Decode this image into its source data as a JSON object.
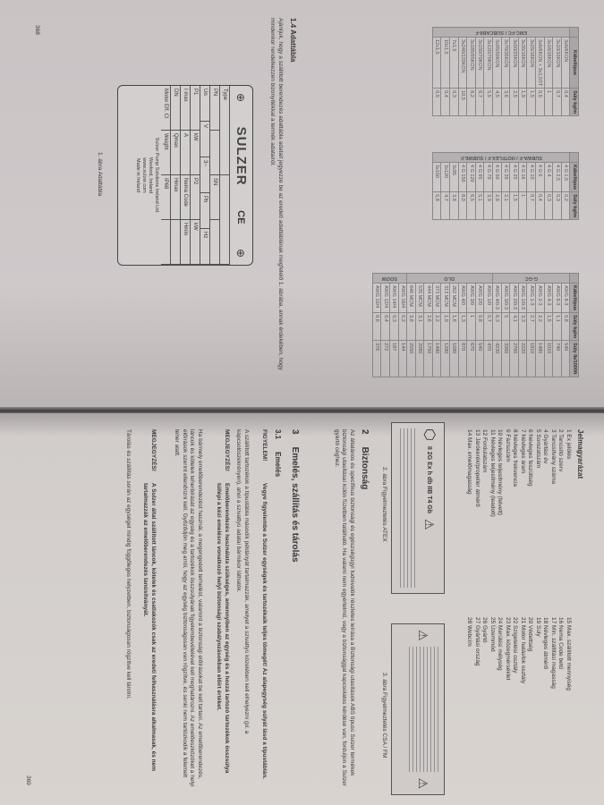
{
  "left_page": {
    "page_number": "368",
    "tables": [
      {
        "header": [
          "Kábeltípus",
          "Súly kg/m"
        ],
        "groups": [
          {
            "label": "EMC-FC / SUBCAB8-F",
            "rows": [
              [
                "3x6/6KON",
                "0,4"
              ],
              [
                "3x10/10KON",
                "0,7"
              ],
              [
                "3x16/16KON",
                "1"
              ],
              [
                "3x6/6KON + 3x1,5ST",
                "0,5"
              ],
              [
                "3x25/16KON",
                "1,5"
              ],
              [
                "3x35/16KON",
                "1,9"
              ],
              [
                "3x50/25KON",
                "2,5"
              ],
              [
                "3x70/35KON",
                "3,6"
              ],
              [
                "3x95/50KON",
                "4,5"
              ],
              [
                "3x120/70KON",
                "5,5"
              ],
              [
                "3x150/70KON",
                "6,7"
              ],
              [
                "3x185/95KON",
                "8,2"
              ],
              [
                "3x240/120KON",
                "10,5"
              ],
              [
                "7x1,5",
                "0,3"
              ],
              [
                "10x1,5",
                "0,4"
              ],
              [
                "12x1,5",
                "0,5"
              ]
            ]
          }
        ]
      },
      {
        "header": [
          "Kábeltípus",
          "Súly kg/m"
        ],
        "groups": [
          {
            "label": "SUBWA-F / HOTFLEX-F / SUBWE-F",
            "rows": [
              [
                "4 G 1,5",
                "0,2"
              ],
              [
                "4 G 2,5",
                "0,3"
              ],
              [
                "4 G 4",
                "0,3"
              ],
              [
                "4 G 6",
                "0,4"
              ],
              [
                "4 G 10",
                "0,7"
              ],
              [
                "4 G 16",
                "1"
              ],
              [
                "4 G 25",
                "1,5"
              ],
              [
                "4 G 35",
                "2,1"
              ],
              [
                "4 G 50",
                "2,8"
              ],
              [
                "4 G 70",
                "3,9"
              ],
              [
                "4 G 95",
                "5,1"
              ],
              [
                "4 G 120",
                "6,5"
              ],
              [
                "4 G 150",
                "8,0"
              ],
              [
                "3x95",
                "3,8"
              ],
              [
                "3x120",
                "4,7"
              ],
              [
                "3x150",
                "5,8"
              ]
            ]
          }
        ]
      },
      {
        "header": [
          "Kábeltípus",
          "Súly kg/m",
          "Súly lb/1000ft"
        ],
        "groups": [
          {
            "label": "G-GC",
            "rows": [
              [
                "AWG 8-3",
                "0,8",
                "540"
              ],
              [
                "AWG 6-3",
                "1,1",
                "740"
              ],
              [
                "AWG 4-3",
                "1,5",
                "1010"
              ],
              [
                "AWG 2-3",
                "2,2",
                "1480"
              ],
              [
                "AWG 1-3",
                "2,7",
                "1810"
              ],
              [
                "AWG 1/0-3",
                "3,3",
                "2220"
              ],
              [
                "AWG 2/0-3",
                "4,1",
                "2760"
              ],
              [
                "AWG 3/0-3",
                "5",
                "3360"
              ],
              [
                "AWG 4/0-3",
                "6,3",
                "4230"
              ]
            ]
          },
          {
            "label": "DLO",
            "rows": [
              [
                "AWG 1/0",
                "0,7",
                "470"
              ],
              [
                "AWG 2/0",
                "0,8",
                "540"
              ],
              [
                "AWG 3/0",
                "1",
                "670"
              ],
              [
                "AWG 4/0",
                "1,3",
                "870"
              ],
              [
                "262 MCM",
                "1,6",
                "1080"
              ],
              [
                "313 MCM",
                "1,9",
                "1280"
              ],
              [
                "373 MCM",
                "2,2",
                "1480"
              ],
              [
                "444 MCM",
                "2,6",
                "1750"
              ],
              [
                "535 MCM",
                "3,1",
                "2080"
              ],
              [
                "646 MCM",
                "3,8",
                "2550"
              ]
            ]
          },
          {
            "label": "SOOW",
            "rows": [
              [
                "AWG 16/4",
                "0,2",
                "144"
              ],
              [
                "AWG 14/4",
                "0,3",
                "187"
              ],
              [
                "AWG 12/4",
                "0,4",
                "272"
              ],
              [
                "AWG 10/4",
                "0,6",
                "376"
              ]
            ]
          }
        ]
      }
    ],
    "section_title": "1.4   Adattábla",
    "section_text": "Ajánljuk, hogy a szállított berendezés adattábla adatait jegyezze be az eredeti adattáblának megfelelő 1. ábrába, annak érdekében, hogy mindenkor rendelkezzen bizonyítékkal a termék adatairól.",
    "nameplate": {
      "brand": "SULZER",
      "ce": "CE",
      "fields": [
        [
          "Type",
          ""
        ],
        [
          "PN",
          "",
          "SN",
          ""
        ],
        [
          "Un",
          "V",
          "3~",
          "Ph",
          "Hz"
        ],
        [
          "P1",
          "kW",
          "P2",
          "kW"
        ],
        [
          "I max",
          "A",
          "Nema Code",
          "Hmin"
        ],
        [
          "DN",
          "Qmax",
          "Hmax",
          ""
        ],
        [
          "Motor Eff. Cl",
          "Weight",
          "IP68",
          ""
        ]
      ],
      "company": "Sulzer Pump Solutions Ireland Ltd.",
      "city": "Wexford, Ireland",
      "web": "www.sulzer.com",
      "made_in": "Made in Ireland"
    },
    "figure_caption": "1. ábra  Adattábla"
  },
  "right_page": {
    "page_number": "369",
    "legend_title": "Jelmagyarázat",
    "legend_items": [
      "1  Ex jelölés",
      "2  Tanúsító szerv",
      "3  Tanúsítvány száma",
      "4  Gyártási év",
      "5  Sorozatszám",
      "6  Névleges feszültség",
      "7  Névleges áram",
      "8  Névleges frekvencia",
      "9  Fázisszám",
      "10 Névleges teljesítmény (felvett)",
      "11 Névleges teljesítmény (leadott)",
      "12 Fordulatszám",
      "13 Járókerék/propeller átmérő",
      "14 Max. emelőmagasság",
      "15 Max. szállított mennyiség",
      "16 Nema Code betű",
      "17 Min. szállítási magasság",
      "18 Névleges átmérő",
      "19 Súly",
      "20 Védettség",
      "21 Motor hatásfok osztály",
      "22 Szigetelési osztály",
      "23 Max. közegmérséklet",
      "24 Merülési mélység",
      "25 Üzemmód",
      "26 Gyártó",
      "27 Gyártási ország",
      "28 Webcím"
    ],
    "fig2_caption": "2. ábra  Figyelmeztetés ATEX",
    "fig2_marking": "II 2G Ex h db IIB T4 Gb",
    "fig3_caption": "3. ábra  Figyelmeztetés CSA / FM",
    "section2_number": "2",
    "section2_title": "Biztonság",
    "section2_text": "Az általános és specifikus biztonsági és egészségügyi tudnivalók részletes leírása a Biztonsági utasítások ABS típusú Sulzer termékek biztonsági utasításai külön füzetben található. Ha valami nem egyértelmű, vagy a biztonsággal kapcsolatos kérdése van, forduljon a Sulzer gyártó céghez.",
    "section3_number": "3",
    "section3_title": "Emelés, szállítás és tárolás",
    "section31_number": "3.1",
    "section31_title": "Emelés",
    "warning_label": "FIGYELEM!",
    "warning_text": "Vegye figyelembe a Sulzer egységek és tartozékaik teljes tömegét! Az alapegység súlyát lásd a típustáblán.",
    "warning_note": "A szállított tartozékok a típustábla második példányát tartalmazzák, amelyet a szivattyú közelében kell elhelyezni (pl. a kapcsolószekrényen), ahol a szivattyú adatai bármikor láthatók.",
    "note1_label": "MEGJEGYZÉS!",
    "note1_text": "Emelőberendezés használata szükséges, amennyiben az egység és a hozzá tartozó tartozékok összsúlya túllépi a kézi emelésre vonatkozó helyi biztonsági szabályozásokban előírt értéket.",
    "para1": "Ha bármely emelőberendezést használ, a megengedett terhelést, valamint a biztonsági előírásokat be kell tartani. Az emelőberendezés, láncok és kötelek teherbírását az egység és a tartozékok összsúlyának figyelembevételével kell meghatározni. Az emelőeszközöket a helyi előírások szerint ellenőrizni kell. Győződjön meg arról, hogy az egység biztonságosan van rögzítve, és senki nem tartózkodik a felemelt teher alatt.",
    "note2_label": "MEGJEGYZÉS!",
    "note2_text": "A Sulzer által szállított láncok, kötelek és csatlakozók csak az eredeti felhasználásra alkalmasak, és nem tartalmazzák az emelőberendezés tanúsítványát.",
    "para2": "Tárolás és szállítás során az egységet mindig függőleges helyzetben, biztonságosan rögzítve kell tárolni."
  }
}
